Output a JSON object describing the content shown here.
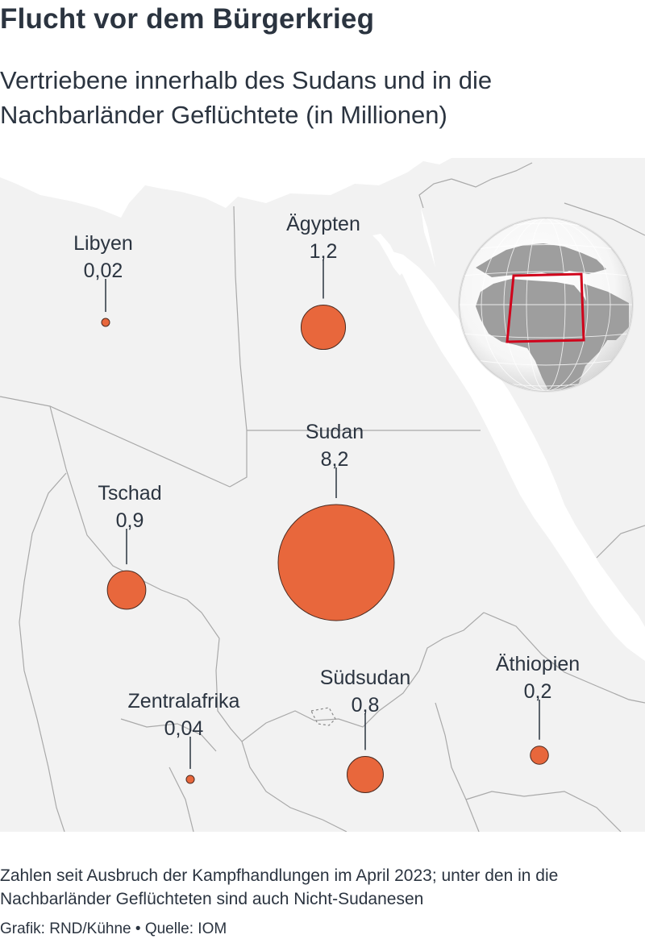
{
  "header": {
    "title": "Flucht vor dem Bürgerkrieg",
    "subtitle": "Vertriebene innerhalb des Sudans und in die Nachbarländer Geflüchtete (in Millionen)"
  },
  "map": {
    "countries": [
      {
        "name": "Libyen",
        "value": 0.02,
        "value_label": "0,02"
      },
      {
        "name": "Ägypten",
        "value": 1.2,
        "value_label": "1,2"
      },
      {
        "name": "Sudan",
        "value": 8.2,
        "value_label": "8,2"
      },
      {
        "name": "Tschad",
        "value": 0.9,
        "value_label": "0,9"
      },
      {
        "name": "Zentralafrika",
        "value": 0.04,
        "value_label": "0,04"
      },
      {
        "name": "Südsudan",
        "value": 0.8,
        "value_label": "0,8"
      },
      {
        "name": "Äthiopien",
        "value": 0.2,
        "value_label": "0,2"
      }
    ],
    "colors": {
      "bubble": "#e8673c",
      "land": "#f2f2f2",
      "water": "#ffffff",
      "border": "#a9a9a9",
      "locator_frame": "#d0021b"
    }
  },
  "footer": {
    "note": "Zahlen seit Ausbruch der Kampfhandlungen im April 2023; unter den in die Nachbarländer Geflüchteten sind auch Nicht-Sudanesen",
    "credit": "Grafik: RND/Kühne • Quelle: IOM"
  }
}
